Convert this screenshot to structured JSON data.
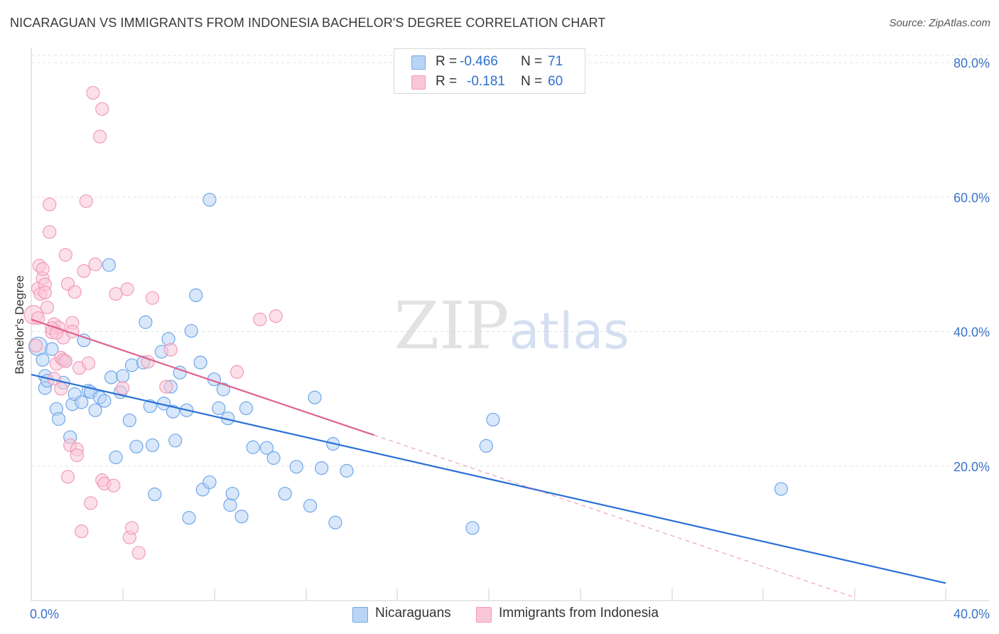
{
  "chart_data": {
    "type": "scatter",
    "title": "NICARAGUAN VS IMMIGRANTS FROM INDONESIA BACHELOR'S DEGREE CORRELATION CHART",
    "source": "Source: ZipAtlas.com",
    "ylabel": "Bachelor's Degree",
    "xlabel": "",
    "xlim": [
      0,
      40
    ],
    "ylim": [
      0,
      80
    ],
    "x_tick_labels": [
      "0.0%",
      "40.0%"
    ],
    "y_tick_labels": [
      "20.0%",
      "40.0%",
      "60.0%",
      "80.0%"
    ],
    "y_ticks": [
      20,
      40,
      60,
      80
    ],
    "watermark": "ZIPatlas",
    "legend_stats": [
      {
        "r_label": "R =",
        "r_value": "-0.466",
        "n_label": "N =",
        "n_value": "71"
      },
      {
        "r_label": "R =",
        "r_value": "-0.181",
        "n_label": "N =",
        "n_value": "60"
      }
    ],
    "series": [
      {
        "name": "Nicaraguans",
        "color": "#6fa8e8",
        "fill": "#b9d4f5",
        "line_color": "#2a6fd6",
        "trend": {
          "x0": 0.0,
          "y0": 33.6,
          "x1": 40.0,
          "y1": 2.6
        },
        "points": [
          [
            0.3,
            37.8
          ],
          [
            0.5,
            35.8
          ],
          [
            0.6,
            33.4
          ],
          [
            0.6,
            31.6
          ],
          [
            0.7,
            32.7
          ],
          [
            0.9,
            37.4
          ],
          [
            1.1,
            28.5
          ],
          [
            1.2,
            27.0
          ],
          [
            1.4,
            32.4
          ],
          [
            1.5,
            35.6
          ],
          [
            1.7,
            24.3
          ],
          [
            1.8,
            29.2
          ],
          [
            1.9,
            30.7
          ],
          [
            2.2,
            29.5
          ],
          [
            2.3,
            38.7
          ],
          [
            2.5,
            31.2
          ],
          [
            2.6,
            31.0
          ],
          [
            2.8,
            28.3
          ],
          [
            3.0,
            30.2
          ],
          [
            3.2,
            29.7
          ],
          [
            3.4,
            49.9
          ],
          [
            3.5,
            33.2
          ],
          [
            3.7,
            21.3
          ],
          [
            3.9,
            31.0
          ],
          [
            4.0,
            33.4
          ],
          [
            4.3,
            26.8
          ],
          [
            4.4,
            35.0
          ],
          [
            4.6,
            22.9
          ],
          [
            4.9,
            35.4
          ],
          [
            5.0,
            41.4
          ],
          [
            5.2,
            28.9
          ],
          [
            5.3,
            23.1
          ],
          [
            5.4,
            15.8
          ],
          [
            5.7,
            37.0
          ],
          [
            5.8,
            29.3
          ],
          [
            6.0,
            38.9
          ],
          [
            6.1,
            31.8
          ],
          [
            6.2,
            28.1
          ],
          [
            6.3,
            23.8
          ],
          [
            6.5,
            33.9
          ],
          [
            6.8,
            28.3
          ],
          [
            6.9,
            12.3
          ],
          [
            7.0,
            40.1
          ],
          [
            7.2,
            45.4
          ],
          [
            7.4,
            35.4
          ],
          [
            7.5,
            16.5
          ],
          [
            7.8,
            17.6
          ],
          [
            7.8,
            59.6
          ],
          [
            8.0,
            32.9
          ],
          [
            8.2,
            28.6
          ],
          [
            8.4,
            31.4
          ],
          [
            8.6,
            27.1
          ],
          [
            8.7,
            14.2
          ],
          [
            8.8,
            15.9
          ],
          [
            9.2,
            12.5
          ],
          [
            9.4,
            28.6
          ],
          [
            9.7,
            22.8
          ],
          [
            10.3,
            22.7
          ],
          [
            10.6,
            21.2
          ],
          [
            11.1,
            15.9
          ],
          [
            11.6,
            19.9
          ],
          [
            12.2,
            14.1
          ],
          [
            12.4,
            30.2
          ],
          [
            12.7,
            19.7
          ],
          [
            13.3,
            11.6
          ],
          [
            13.2,
            23.3
          ],
          [
            13.8,
            19.3
          ],
          [
            19.3,
            10.8
          ],
          [
            19.9,
            23.0
          ],
          [
            20.2,
            26.9
          ],
          [
            32.8,
            16.6
          ]
        ]
      },
      {
        "name": "Immigrants from Indonesia",
        "color": "#f29bb8",
        "fill": "#f9c6d7",
        "line_color": "#e0628f",
        "trend": {
          "x0": 0.0,
          "y0": 41.8,
          "x1": 15.0,
          "y1": 24.6
        },
        "trend_dashed": {
          "x0": 15.0,
          "y0": 24.6,
          "x1": 36.0,
          "y1": 0.5
        },
        "points": [
          [
            0.1,
            42.5
          ],
          [
            0.2,
            37.9
          ],
          [
            0.3,
            46.4
          ],
          [
            0.35,
            49.8
          ],
          [
            0.4,
            45.6
          ],
          [
            0.5,
            47.9
          ],
          [
            0.5,
            49.3
          ],
          [
            0.6,
            47.0
          ],
          [
            0.7,
            43.6
          ],
          [
            0.8,
            58.9
          ],
          [
            0.8,
            54.8
          ],
          [
            0.9,
            39.9
          ],
          [
            1.0,
            33.0
          ],
          [
            1.0,
            41.1
          ],
          [
            1.1,
            35.2
          ],
          [
            1.2,
            40.6
          ],
          [
            1.3,
            36.1
          ],
          [
            1.4,
            39.1
          ],
          [
            1.4,
            35.8
          ],
          [
            1.5,
            51.4
          ],
          [
            1.6,
            47.1
          ],
          [
            1.7,
            23.1
          ],
          [
            1.6,
            18.4
          ],
          [
            1.8,
            41.3
          ],
          [
            1.8,
            40.0
          ],
          [
            1.9,
            45.9
          ],
          [
            2.0,
            22.5
          ],
          [
            2.0,
            21.6
          ],
          [
            2.1,
            34.6
          ],
          [
            2.2,
            10.3
          ],
          [
            2.3,
            49.0
          ],
          [
            2.4,
            59.4
          ],
          [
            2.6,
            14.5
          ],
          [
            2.7,
            75.5
          ],
          [
            2.8,
            50.0
          ],
          [
            3.0,
            69.0
          ],
          [
            3.1,
            73.1
          ],
          [
            3.1,
            17.9
          ],
          [
            3.2,
            17.4
          ],
          [
            3.6,
            17.1
          ],
          [
            3.7,
            45.6
          ],
          [
            4.0,
            31.6
          ],
          [
            4.2,
            46.3
          ],
          [
            4.3,
            9.4
          ],
          [
            4.4,
            10.8
          ],
          [
            4.7,
            7.1
          ],
          [
            5.1,
            35.5
          ],
          [
            5.3,
            45.0
          ],
          [
            5.9,
            31.8
          ],
          [
            6.1,
            37.3
          ],
          [
            9.0,
            34.0
          ],
          [
            10.0,
            41.8
          ],
          [
            10.7,
            42.3
          ],
          [
            1.3,
            31.5
          ],
          [
            0.9,
            40.5
          ],
          [
            0.6,
            45.8
          ],
          [
            1.1,
            39.8
          ],
          [
            0.3,
            42.0
          ],
          [
            2.5,
            35.3
          ],
          [
            1.5,
            35.6
          ]
        ]
      }
    ]
  }
}
